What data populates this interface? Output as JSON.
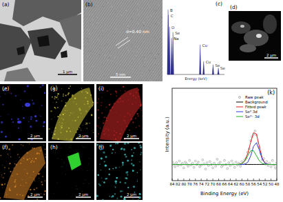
{
  "panels": [
    {
      "label": "(a)",
      "scale_bar": "1 μm"
    },
    {
      "label": "(b)",
      "annotation": "d=0.40 nm",
      "scale_bar": "5 nm"
    },
    {
      "label": "(c)",
      "x_label": "Energy (keV)",
      "energy_range": [
        0,
        14
      ],
      "peaks": [
        {
          "label": "B",
          "energy": 0.18,
          "height": 0.98
        },
        {
          "label": "C",
          "energy": 0.28,
          "height": 0.9
        },
        {
          "label": "O",
          "energy": 0.52,
          "height": 0.72
        },
        {
          "label": "Se",
          "energy": 1.38,
          "height": 0.64
        },
        {
          "label": "Na",
          "energy": 1.04,
          "height": 0.55
        },
        {
          "label": "Cu",
          "energy": 8.05,
          "height": 0.45
        },
        {
          "label": "Cu",
          "energy": 8.9,
          "height": 0.2
        },
        {
          "label": "Se",
          "energy": 11.2,
          "height": 0.15
        },
        {
          "label": "Se",
          "energy": 12.5,
          "height": 0.1
        }
      ]
    },
    {
      "label": "(d)",
      "scale_bar": "2 μm"
    },
    {
      "label": "(e)",
      "scale_bar": "2 μm"
    },
    {
      "label": "(f)",
      "scale_bar": "2 μm"
    },
    {
      "label": "(g)",
      "scale_bar": "2 μm"
    },
    {
      "label": "(h)",
      "scale_bar": "2 μm"
    },
    {
      "label": "(i)",
      "scale_bar": "2 μm"
    },
    {
      "label": "(j)",
      "scale_bar": "2 μm"
    }
  ],
  "chart_data": {
    "type": "line",
    "title": "(k)",
    "x_label": "Binding Energy (eV)",
    "y_label": "Intensity (a.u.)",
    "xlim": [
      84,
      48
    ],
    "xticks": [
      84,
      82,
      80,
      78,
      76,
      74,
      72,
      70,
      68,
      66,
      64,
      62,
      60,
      58,
      56,
      54,
      52,
      50,
      48
    ],
    "ylim": [
      0,
      1.6
    ],
    "tick_labels": "x",
    "legend": "upper right",
    "series": [
      {
        "name": "Raw peak",
        "type": "scatter",
        "marker": "circle",
        "color": "#8c8c8c",
        "x": [
          48,
          48.5,
          49,
          49.5,
          50,
          50.5,
          51,
          51.5,
          52,
          52.5,
          53,
          53.5,
          54,
          54.5,
          55,
          55.5,
          56,
          56.5,
          57,
          57.5,
          58,
          58.5,
          59,
          59.5,
          60,
          60.5,
          61,
          61.5,
          62,
          62.5,
          63,
          63.5,
          64,
          64.5,
          65,
          65.5,
          66,
          66.5,
          67,
          67.5,
          68,
          68.5,
          69,
          69.5,
          70,
          70.5,
          71,
          71.5,
          72,
          72.5,
          73,
          73.5,
          74,
          74.5,
          75,
          75.5,
          76,
          76.5,
          77,
          77.5,
          78,
          78.5,
          79,
          79.5,
          80,
          80.5,
          81,
          81.5,
          82,
          82.5,
          83,
          83.5,
          84
        ],
        "values": [
          0.31,
          0.22,
          0.27,
          0.35,
          0.24,
          0.3,
          0.26,
          0.33,
          0.29,
          0.38,
          0.36,
          0.47,
          0.58,
          0.66,
          0.79,
          0.86,
          0.8,
          0.76,
          0.69,
          0.55,
          0.49,
          0.39,
          0.36,
          0.3,
          0.33,
          0.25,
          0.3,
          0.27,
          0.32,
          0.23,
          0.29,
          0.34,
          0.26,
          0.31,
          0.21,
          0.28,
          0.35,
          0.27,
          0.24,
          0.32,
          0.29,
          0.37,
          0.25,
          0.3,
          0.22,
          0.28,
          0.33,
          0.26,
          0.31,
          0.2,
          0.29,
          0.36,
          0.27,
          0.24,
          0.32,
          0.28,
          0.34,
          0.23,
          0.3,
          0.27,
          0.35,
          0.25,
          0.29,
          0.32,
          0.22,
          0.3,
          0.27,
          0.34,
          0.26,
          0.31,
          0.24,
          0.29,
          0.33
        ]
      },
      {
        "name": "Background",
        "type": "line",
        "color": "#000000",
        "x": [
          48,
          49,
          50,
          51,
          52,
          53,
          54,
          55,
          56,
          57,
          58,
          59,
          60,
          61,
          62,
          63,
          64,
          65,
          66,
          67,
          68,
          69,
          70,
          71,
          72,
          73,
          74,
          75,
          76,
          77,
          78,
          79,
          80,
          81,
          82,
          83,
          84
        ],
        "values": [
          0.28,
          0.28,
          0.28,
          0.28,
          0.28,
          0.28,
          0.28,
          0.28,
          0.28,
          0.28,
          0.28,
          0.28,
          0.28,
          0.28,
          0.28,
          0.28,
          0.28,
          0.28,
          0.28,
          0.28,
          0.28,
          0.28,
          0.28,
          0.28,
          0.28,
          0.28,
          0.28,
          0.28,
          0.28,
          0.28,
          0.28,
          0.28,
          0.28,
          0.28,
          0.28,
          0.28,
          0.28
        ]
      },
      {
        "name": "Fitted peak",
        "type": "line",
        "color": "#e02020",
        "x": [
          48,
          49,
          50,
          51,
          52,
          53,
          54,
          55,
          56,
          57,
          58,
          59,
          60,
          61,
          62,
          63,
          64,
          65,
          66,
          67,
          68,
          69,
          70,
          71,
          72,
          73,
          74,
          75,
          76,
          77,
          78,
          79,
          80,
          81,
          82,
          83,
          84
        ],
        "values": [
          0.28,
          0.28,
          0.28,
          0.282,
          0.301,
          0.387,
          0.59,
          0.807,
          0.831,
          0.663,
          0.469,
          0.347,
          0.296,
          0.283,
          0.28,
          0.28,
          0.28,
          0.28,
          0.28,
          0.28,
          0.28,
          0.28,
          0.28,
          0.28,
          0.28,
          0.28,
          0.28,
          0.28,
          0.28,
          0.28,
          0.28,
          0.28,
          0.28,
          0.28,
          0.28,
          0.28,
          0.28
        ]
      },
      {
        "name": "Se⁰ 3d",
        "type": "line",
        "color": "#2a3ad8",
        "x": [
          48,
          49,
          50,
          51,
          52,
          53,
          54,
          55,
          56,
          57,
          58,
          59,
          60,
          61,
          62,
          63,
          64,
          65,
          66,
          67,
          68,
          69,
          70,
          71,
          72,
          73,
          74,
          75,
          76,
          77,
          78,
          79,
          80,
          81,
          82,
          83,
          84
        ],
        "values": [
          0.28,
          0.28,
          0.28,
          0.282,
          0.298,
          0.371,
          0.528,
          0.655,
          0.594,
          0.426,
          0.317,
          0.285,
          0.28,
          0.28,
          0.28,
          0.28,
          0.28,
          0.28,
          0.28,
          0.28,
          0.28,
          0.28,
          0.28,
          0.28,
          0.28,
          0.28,
          0.28,
          0.28,
          0.28,
          0.28,
          0.28,
          0.28,
          0.28,
          0.28,
          0.28,
          0.28,
          0.28
        ]
      },
      {
        "name": "Se²⁻ 3d",
        "type": "line",
        "color": "#22b022",
        "x": [
          48,
          49,
          50,
          51,
          52,
          53,
          54,
          55,
          56,
          57,
          58,
          59,
          60,
          61,
          62,
          63,
          64,
          65,
          66,
          67,
          68,
          69,
          70,
          71,
          72,
          73,
          74,
          75,
          76,
          77,
          78,
          79,
          80,
          81,
          82,
          83,
          84
        ],
        "values": [
          0.28,
          0.28,
          0.28,
          0.28,
          0.283,
          0.296,
          0.342,
          0.432,
          0.517,
          0.517,
          0.432,
          0.342,
          0.296,
          0.283,
          0.28,
          0.28,
          0.28,
          0.28,
          0.28,
          0.28,
          0.28,
          0.28,
          0.28,
          0.28,
          0.28,
          0.28,
          0.28,
          0.28,
          0.28,
          0.28,
          0.28,
          0.28,
          0.28,
          0.28,
          0.28,
          0.28,
          0.28
        ]
      }
    ]
  }
}
